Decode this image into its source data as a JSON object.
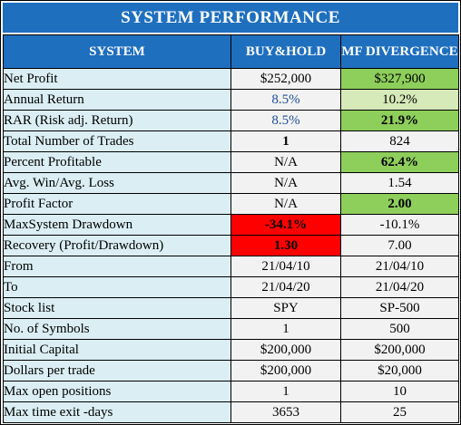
{
  "title": "SYSTEM  PERFORMANCE",
  "headers": {
    "system": "SYSTEM",
    "buyhold": "BUY&HOLD",
    "mf": "MF DIVERGENCE"
  },
  "rows": [
    {
      "label": "Net Profit",
      "buyhold": "$252,000",
      "mf": "$327,900"
    },
    {
      "label": "Annual Return",
      "buyhold": "8.5%",
      "mf": "10.2%"
    },
    {
      "label": "RAR (Risk adj. Return)",
      "buyhold": "8.5%",
      "mf": "21.9%"
    },
    {
      "label": "Total Number of Trades",
      "buyhold": "1",
      "mf": "824"
    },
    {
      "label": "Percent Profitable",
      "buyhold": "N/A",
      "mf": "62.4%"
    },
    {
      "label": "Avg. Win/Avg. Loss",
      "buyhold": "N/A",
      "mf": "1.54"
    },
    {
      "label": "Profit Factor",
      "buyhold": "N/A",
      "mf": "2.00"
    },
    {
      "label": "MaxSystem Drawdown",
      "buyhold": "-34.1%",
      "mf": "-10.1%"
    },
    {
      "label": "Recovery (Profit/Drawdown)",
      "buyhold": "1.30",
      "mf": "7.00"
    },
    {
      "label": "From",
      "buyhold": "21/04/10",
      "mf": "21/04/10"
    },
    {
      "label": "To",
      "buyhold": "21/04/20",
      "mf": "21/04/20"
    },
    {
      "label": "Stock list",
      "buyhold": "SPY",
      "mf": "SP-500"
    },
    {
      "label": "No. of Symbols",
      "buyhold": "1",
      "mf": "500"
    },
    {
      "label": "Initial Capital",
      "buyhold": "$200,000",
      "mf": "$200,000"
    },
    {
      "label": "Dollars per trade",
      "buyhold": "$200,000",
      "mf": "$20,000"
    },
    {
      "label": "Max open positions",
      "buyhold": "1",
      "mf": "10"
    },
    {
      "label": "Max time exit -days",
      "buyhold": "3653",
      "mf": "25"
    }
  ],
  "colors": {
    "header": "#1f6fbf",
    "label_bg": "#daeef3",
    "value_bg": "#f2f2f2",
    "highlight_green": "#8ece5b",
    "highlight_lightgreen": "#d6e9b8",
    "highlight_red": "#ff0000",
    "blue_text": "#1f4e9a"
  }
}
